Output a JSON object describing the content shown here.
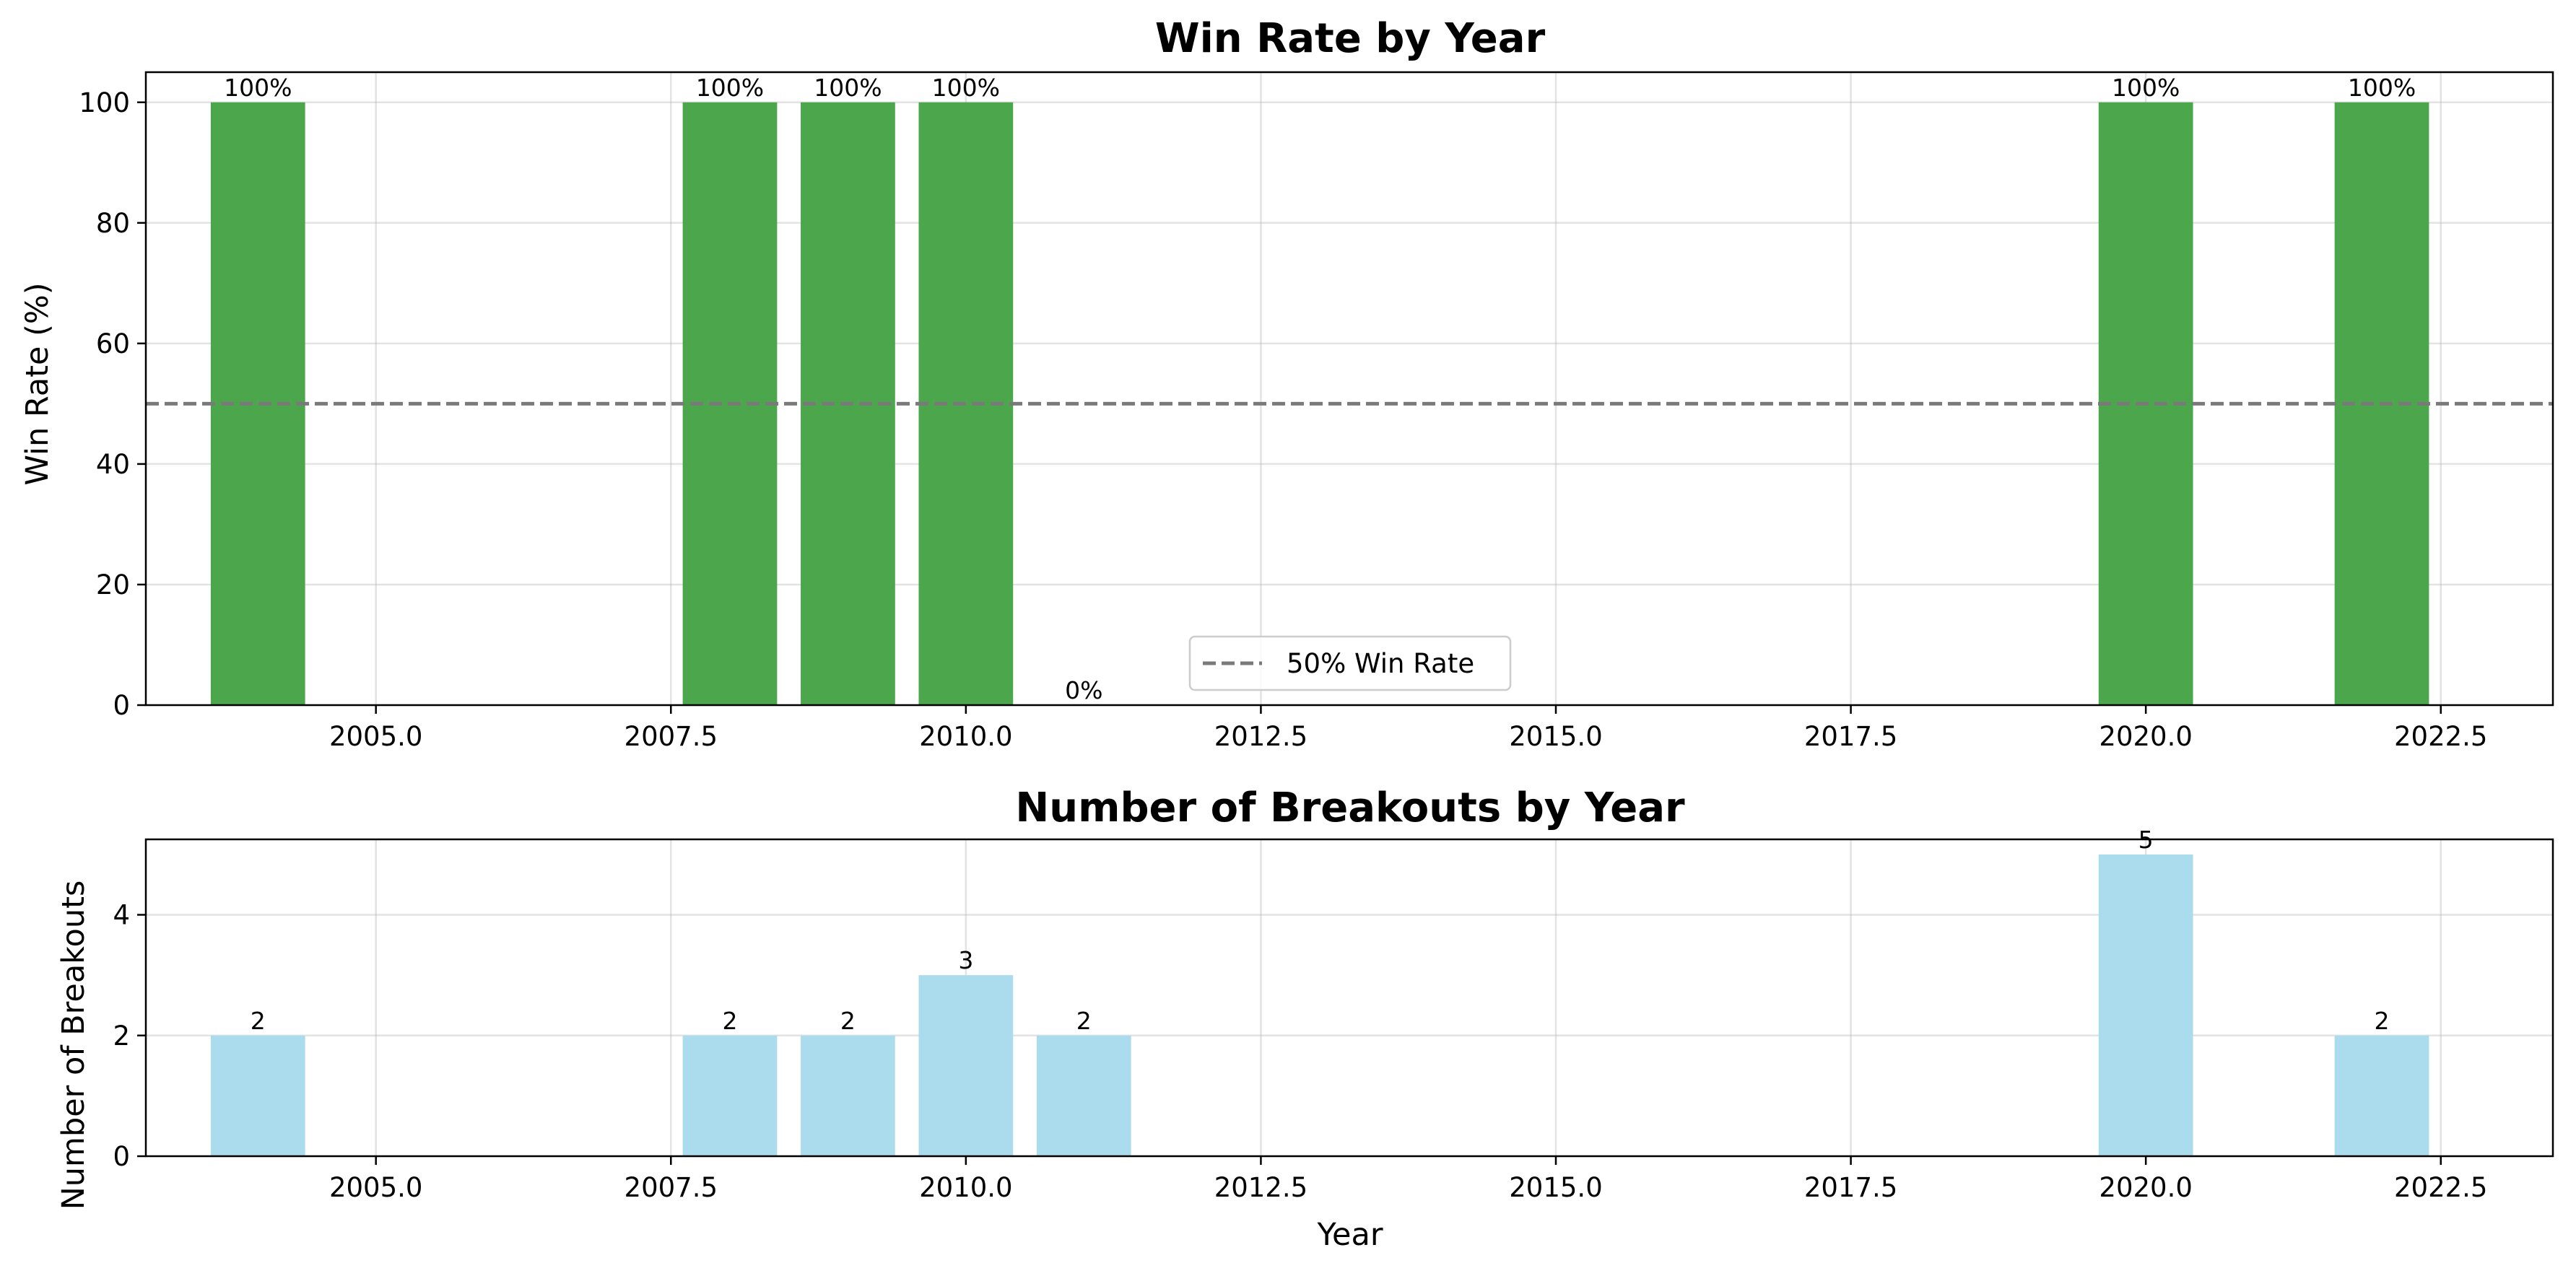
{
  "chart_data": [
    {
      "type": "bar",
      "title": "Win Rate by Year",
      "xlabel": "",
      "ylabel": "Win Rate (%)",
      "x": [
        2004,
        2008,
        2009,
        2010,
        2011,
        2020,
        2022
      ],
      "values": [
        100,
        100,
        100,
        100,
        0,
        100,
        100
      ],
      "data_labels": [
        "100%",
        "100%",
        "100%",
        "100%",
        "0%",
        "100%",
        "100%"
      ],
      "bar_color": "#4ca64c",
      "xlim": [
        2003.05,
        2023.45
      ],
      "ylim": [
        0,
        105
      ],
      "xticks": [
        2005.0,
        2007.5,
        2010.0,
        2012.5,
        2015.0,
        2017.5,
        2020.0,
        2022.5
      ],
      "xtick_labels": [
        "2005.0",
        "2007.5",
        "2010.0",
        "2012.5",
        "2015.0",
        "2017.5",
        "2020.0",
        "2022.5"
      ],
      "yticks": [
        0,
        20,
        40,
        60,
        80,
        100
      ],
      "ytick_labels": [
        "0",
        "20",
        "40",
        "60",
        "80",
        "100"
      ],
      "reference_line": {
        "y": 50,
        "label": "50% Win Rate",
        "color": "#7a7a7a",
        "style": "dashed"
      },
      "grid": true,
      "legend": {
        "placement": "lower-center",
        "entries": [
          "50% Win Rate"
        ]
      }
    },
    {
      "type": "bar",
      "title": "Number of Breakouts by Year",
      "xlabel": "Year",
      "ylabel": "Number of Breakouts",
      "x": [
        2004,
        2008,
        2009,
        2010,
        2011,
        2020,
        2022
      ],
      "values": [
        2,
        2,
        2,
        3,
        2,
        5,
        2
      ],
      "data_labels": [
        "2",
        "2",
        "2",
        "3",
        "2",
        "5",
        "2"
      ],
      "bar_color": "#aadcee",
      "xlim": [
        2003.05,
        2023.45
      ],
      "ylim": [
        0,
        5.25
      ],
      "xticks": [
        2005.0,
        2007.5,
        2010.0,
        2012.5,
        2015.0,
        2017.5,
        2020.0,
        2022.5
      ],
      "xtick_labels": [
        "2005.0",
        "2007.5",
        "2010.0",
        "2012.5",
        "2015.0",
        "2017.5",
        "2020.0",
        "2022.5"
      ],
      "yticks": [
        0,
        2,
        4
      ],
      "ytick_labels": [
        "0",
        "2",
        "4"
      ],
      "grid": true
    }
  ]
}
